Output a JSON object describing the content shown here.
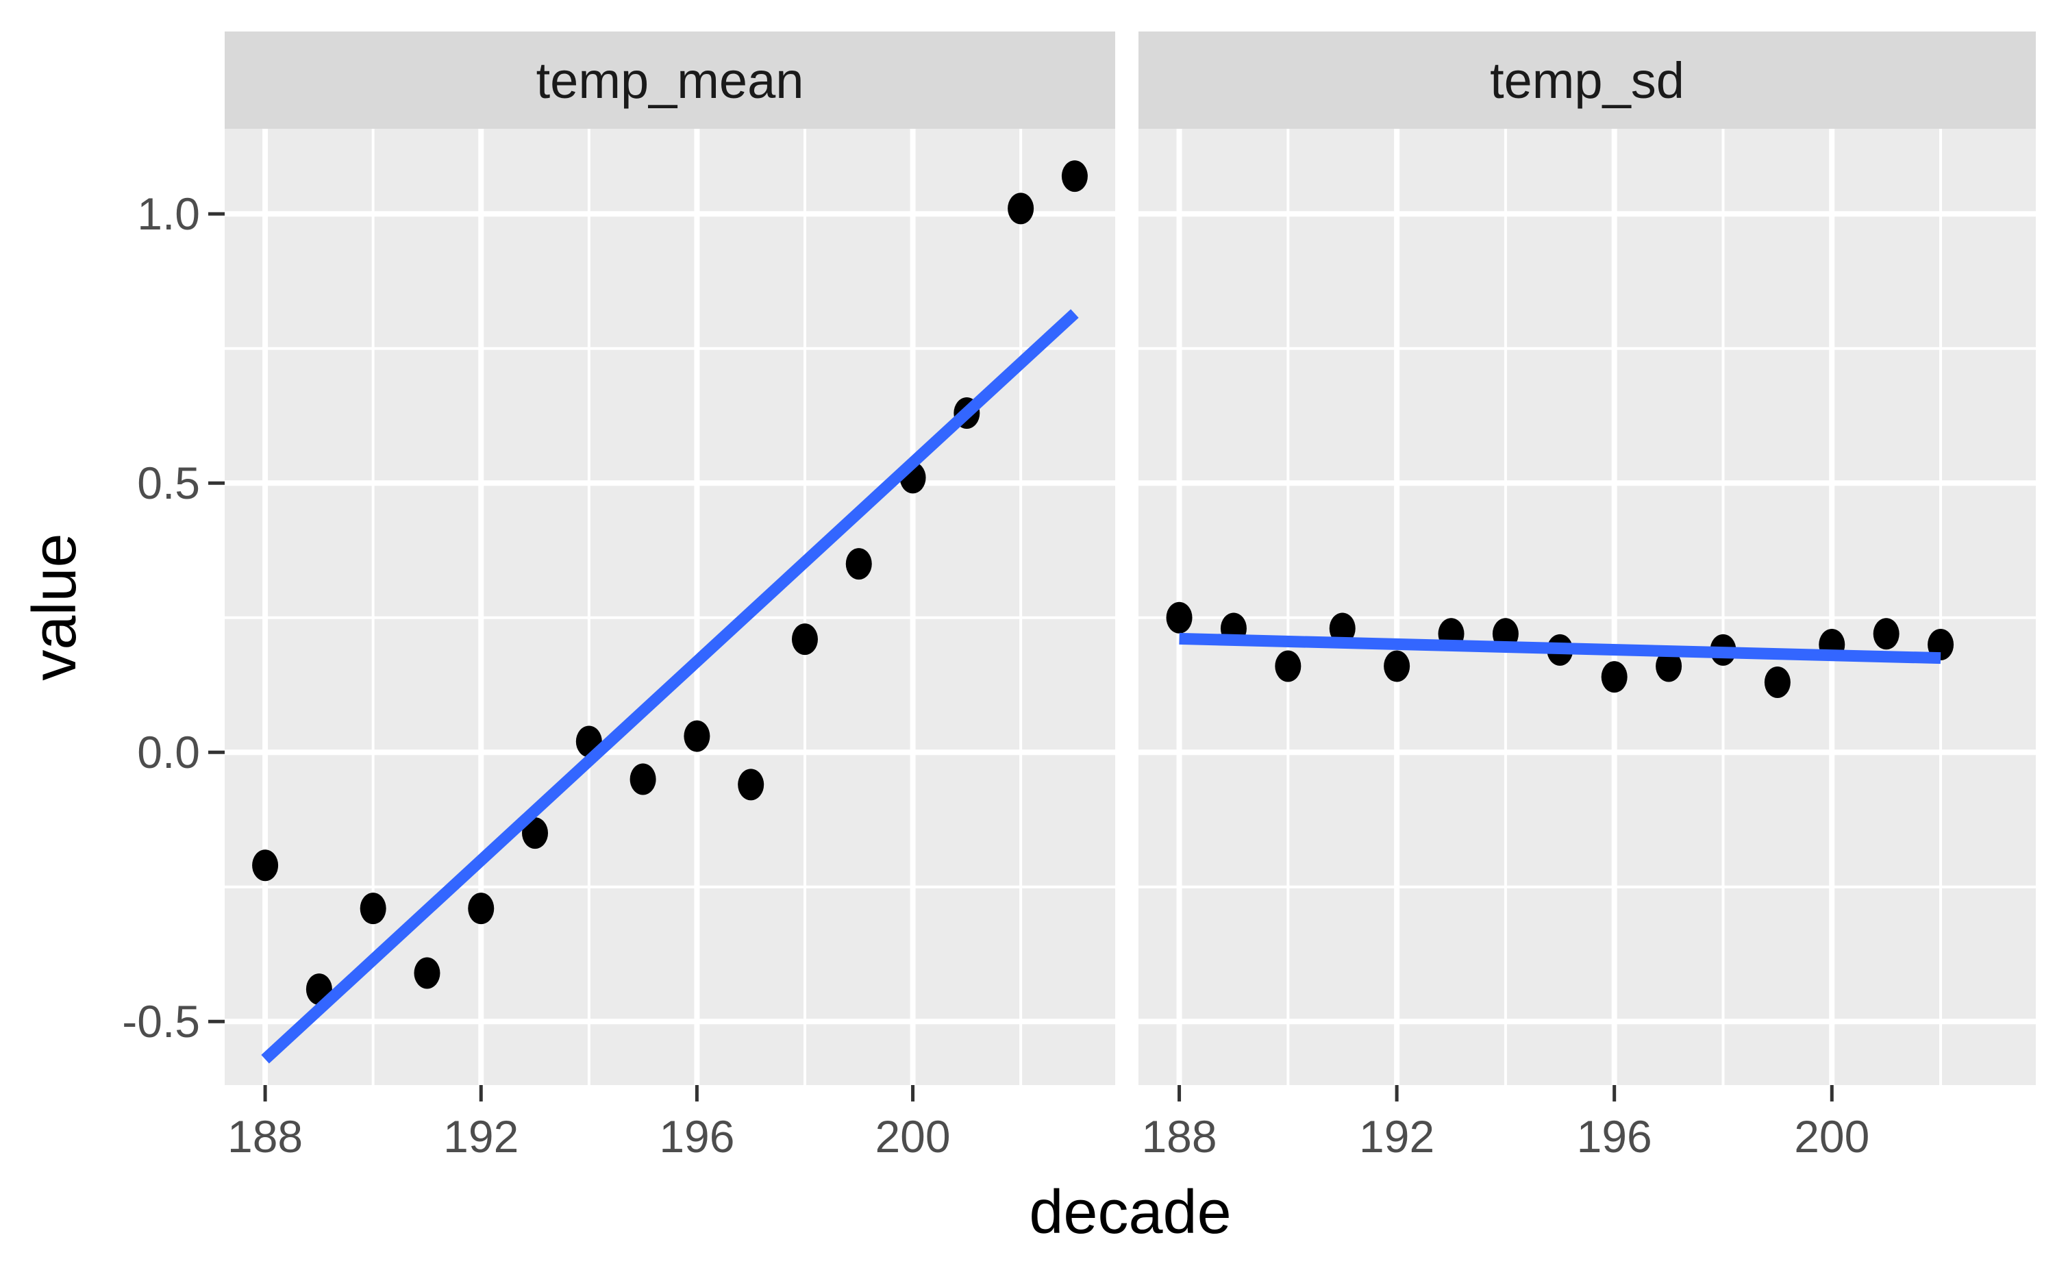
{
  "figure": {
    "background": "#FFFFFF",
    "panel_bg": "#EBEBEB",
    "strip_bg": "#D9D9D9",
    "grid_color": "#FFFFFF",
    "tick_mark_color": "#333333",
    "tick_label_color": "#4D4D4D",
    "strip_text_color": "#1A1A1A",
    "axis_title_color": "#000000"
  },
  "chart_data": {
    "type": "scatter",
    "title": "",
    "xlabel": "decade",
    "ylabel": "value",
    "legend_position": "none",
    "grid": true,
    "point_color": "#000000",
    "trend_color": "#3366FF",
    "x_domain": [
      187.25,
      203.75
    ],
    "y_domain": [
      -0.618,
      1.158
    ],
    "x_ticks": {
      "values": [
        188,
        192,
        196,
        200
      ],
      "labels": [
        "188",
        "192",
        "196",
        "200"
      ]
    },
    "x_minor": [
      190,
      194,
      198,
      202
    ],
    "y_ticks": {
      "values": [
        1.0,
        0.5,
        0.0,
        -0.5
      ],
      "labels": [
        "1.0",
        "0.5",
        "0.0",
        "-0.5"
      ]
    },
    "y_minor": [
      0.75,
      0.25,
      -0.25
    ],
    "facets": [
      {
        "label": "temp_mean",
        "x": [
          188,
          189,
          190,
          191,
          192,
          193,
          194,
          195,
          196,
          197,
          198,
          199,
          200,
          201,
          202,
          203
        ],
        "y": [
          -0.21,
          -0.44,
          -0.29,
          -0.41,
          -0.29,
          -0.15,
          0.02,
          -0.05,
          0.03,
          -0.06,
          0.21,
          0.35,
          0.51,
          0.63,
          1.01,
          1.07
        ],
        "trend": {
          "x": [
            188,
            203
          ],
          "y": [
            -0.57,
            0.815
          ]
        }
      },
      {
        "label": "temp_sd",
        "x": [
          188,
          189,
          190,
          191,
          192,
          193,
          194,
          195,
          196,
          197,
          198,
          199,
          200,
          201,
          202
        ],
        "y": [
          0.25,
          0.23,
          0.16,
          0.23,
          0.16,
          0.22,
          0.22,
          0.19,
          0.14,
          0.16,
          0.19,
          0.13,
          0.2,
          0.22,
          0.2
        ],
        "trend": {
          "x": [
            188,
            202
          ],
          "y": [
            0.211,
            0.175
          ]
        }
      }
    ]
  }
}
